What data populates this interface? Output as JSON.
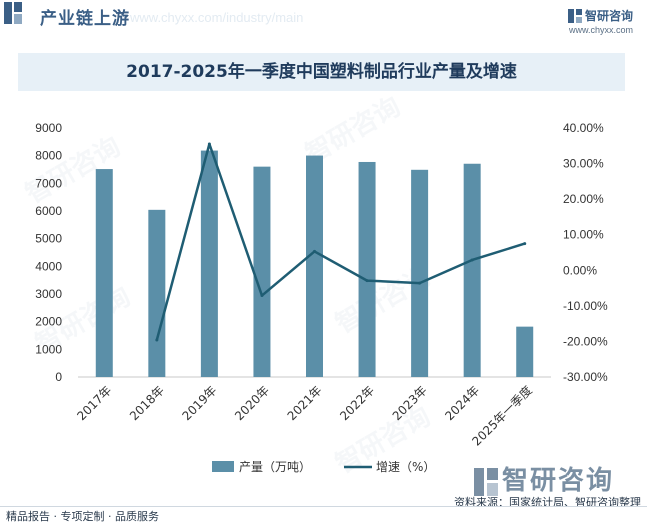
{
  "header": {
    "title": "产业链上游",
    "watermark": "www.chyxx.com/industry/main",
    "brand_name": "智研咨询",
    "brand_url": "www.chyxx.com"
  },
  "colors": {
    "bar": "#5b8fa8",
    "line": "#1f5d73",
    "title_bg": "#e7f0f7",
    "accent": "#3b5f86"
  },
  "chart_data": {
    "type": "bar",
    "title": "2017-2025年一季度中国塑料制品行业产量及增速",
    "categories": [
      "2017年",
      "2018年",
      "2019年",
      "2020年",
      "2021年",
      "2022年",
      "2023年",
      "2024年",
      "2025年一季度"
    ],
    "series": [
      {
        "name": "产量（万吨）",
        "type": "bar",
        "axis": "left",
        "values": [
          7516,
          6042,
          8184,
          7603,
          8004,
          7772,
          7489,
          7708,
          1820
        ]
      },
      {
        "name": "增速（%）",
        "type": "line",
        "axis": "right",
        "values": [
          null,
          -19.6,
          35.5,
          -7.1,
          5.3,
          -2.9,
          -3.6,
          2.9,
          7.5
        ]
      }
    ],
    "y_left": {
      "min": 0,
      "max": 9000,
      "step": 1000,
      "ticks": [
        "0",
        "1000",
        "2000",
        "3000",
        "4000",
        "5000",
        "6000",
        "7000",
        "8000",
        "9000"
      ]
    },
    "y_right": {
      "min": -30,
      "max": 40,
      "step": 10,
      "ticks": [
        "-30.00%",
        "-20.00%",
        "-10.00%",
        "0.00%",
        "10.00%",
        "20.00%",
        "30.00%",
        "40.00%"
      ]
    },
    "legend": [
      {
        "label": "产量（万吨）",
        "kind": "bar"
      },
      {
        "label": "增速（%）",
        "kind": "line"
      }
    ],
    "legend_position": "bottom"
  },
  "footer": {
    "left": "精品报告 · 专项定制 · 品质服务",
    "right": "资料来源：国家统计局、智研咨询整理",
    "logo": "智研咨询"
  }
}
